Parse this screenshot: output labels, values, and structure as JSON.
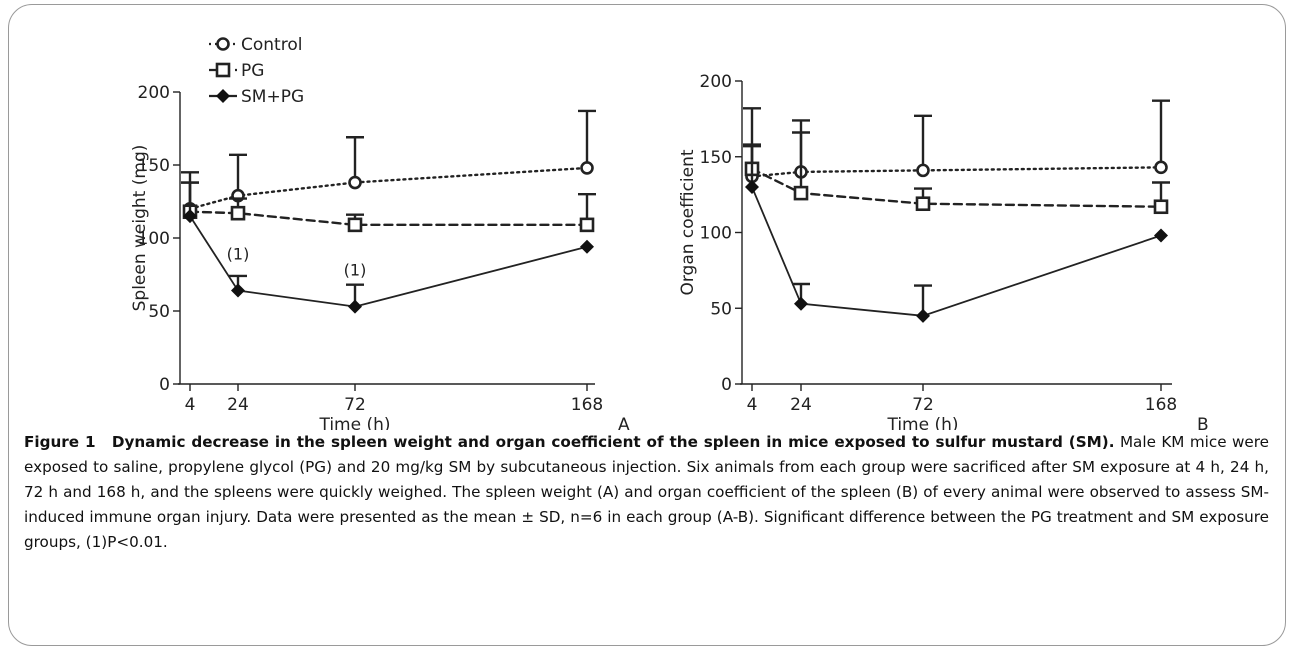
{
  "chart_data": [
    {
      "type": "line",
      "panel_label": "A",
      "xlabel": "Time (h)",
      "ylabel": "Spleen weight (mg)",
      "x": [
        4,
        24,
        72,
        168
      ],
      "x_ticks": [
        "4",
        "24",
        "72",
        "168"
      ],
      "ylim": [
        0,
        200
      ],
      "y_ticks": [
        "0",
        "50",
        "100",
        "150",
        "200"
      ],
      "legend_position": "top-left",
      "series": [
        {
          "name": "Control",
          "marker": "circle",
          "line": "dotted",
          "values": [
            120,
            129,
            138,
            148
          ],
          "error": [
            25,
            28,
            31,
            39
          ]
        },
        {
          "name": "PG",
          "marker": "square",
          "line": "dashed",
          "values": [
            118,
            117,
            109,
            109
          ],
          "error": [
            20,
            10,
            7,
            21
          ]
        },
        {
          "name": "SM+PG",
          "marker": "diamond",
          "line": "solid",
          "values": [
            115,
            64,
            53,
            94
          ],
          "error": [
            23,
            10,
            15,
            0
          ]
        }
      ],
      "annotations": [
        {
          "x": 24,
          "y": 64,
          "text": "(1)"
        },
        {
          "x": 72,
          "y": 53,
          "text": "(1)"
        }
      ]
    },
    {
      "type": "line",
      "panel_label": "B",
      "xlabel": "Time (h)",
      "ylabel": "Organ coefficient",
      "x": [
        4,
        24,
        72,
        168
      ],
      "x_ticks": [
        "4",
        "24",
        "72",
        "168"
      ],
      "ylim": [
        0,
        200
      ],
      "y_ticks": [
        "0",
        "50",
        "100",
        "150",
        "200"
      ],
      "series": [
        {
          "name": "Control",
          "marker": "circle",
          "line": "dotted",
          "values": [
            137,
            140,
            141,
            143
          ],
          "error": [
            45,
            34,
            36,
            44
          ]
        },
        {
          "name": "PG",
          "marker": "square",
          "line": "dashed",
          "values": [
            142,
            126,
            119,
            117
          ],
          "error": [
            15,
            40,
            10,
            16
          ]
        },
        {
          "name": "SM+PG",
          "marker": "diamond",
          "line": "solid",
          "values": [
            130,
            53,
            45,
            98
          ],
          "error": [
            28,
            13,
            20,
            0
          ]
        }
      ]
    }
  ],
  "caption": {
    "label": "Figure 1",
    "title": "Dynamic decrease in the spleen weight and organ coefficient of the spleen in mice exposed to sulfur mustard (SM).",
    "body": "Male KM mice were exposed to saline, propylene glycol (PG) and 20 mg/kg SM by subcutaneous injection. Six animals from each group were sacrificed after SM exposure at 4 h, 24 h, 72 h and 168 h, and the spleens were quickly weighed. The spleen weight (A) and organ coefficient of the spleen (B) of every animal were observed to assess SM-induced immune organ injury. Data were presented as the mean ± SD, n=6 in each group (A-B). Significant difference between the PG treatment and SM exposure groups, (1)P<0.01."
  }
}
